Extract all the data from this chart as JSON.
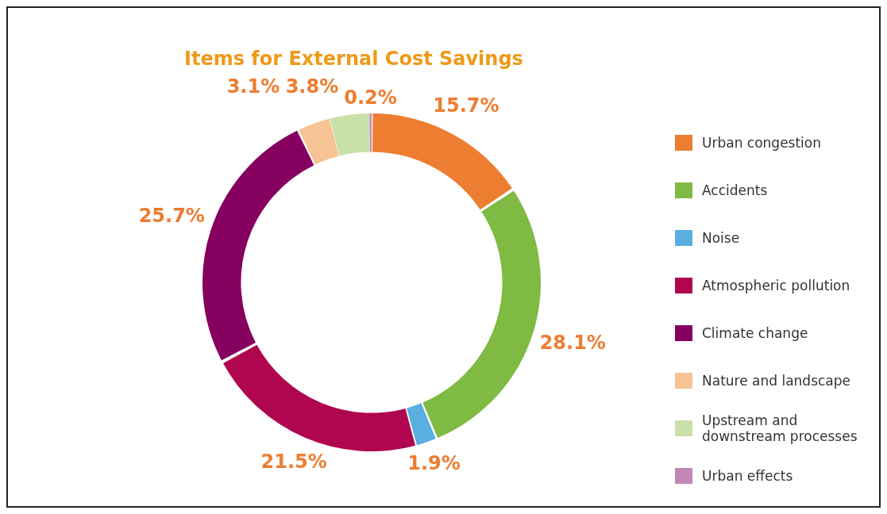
{
  "chart_data": {
    "type": "donut",
    "title": "Items for External Cost Savings",
    "categories": [
      "Urban congestion",
      "Accidents",
      "Noise",
      "Atmospheric pollution",
      "Climate change",
      "Nature and landscape",
      "Upstream and downstream processes",
      "Urban effects"
    ],
    "values": [
      15.7,
      28.1,
      1.9,
      21.5,
      25.7,
      3.1,
      3.8,
      0.2
    ],
    "colors": [
      "#ed7d31",
      "#7fba42",
      "#5aaee0",
      "#b0064f",
      "#86005f",
      "#f7c394",
      "#c9e0a9",
      "#c486b4"
    ],
    "value_labels": [
      "15.7%",
      "28.1%",
      "1.9%",
      "21.5%",
      "25.7%",
      "3.1%",
      "3.8%",
      "0.2%"
    ],
    "legend": "right"
  }
}
